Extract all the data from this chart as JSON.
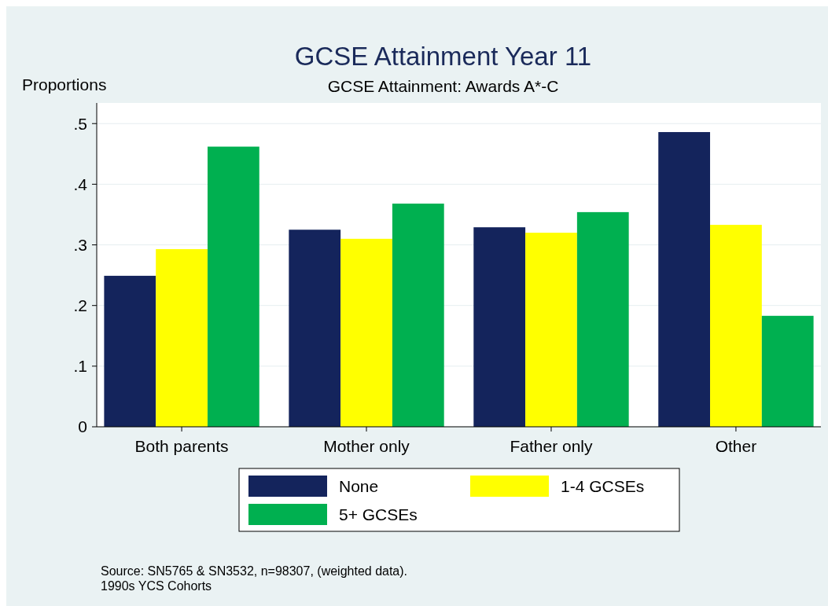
{
  "chart_data": {
    "type": "bar",
    "title": "GCSE Attainment Year 11",
    "subtitle": "GCSE Attainment: Awards A*-C",
    "ylabel": "Proportions",
    "categories": [
      "Both parents",
      "Mother only",
      "Father only",
      "Other"
    ],
    "series": [
      {
        "name": "None",
        "color": "#14245c",
        "values": [
          0.249,
          0.325,
          0.329,
          0.486
        ]
      },
      {
        "name": "1-4 GCSEs",
        "color": "#ffff00",
        "values": [
          0.293,
          0.31,
          0.32,
          0.333
        ]
      },
      {
        "name": "5+ GCSEs",
        "color": "#00b050",
        "values": [
          0.462,
          0.368,
          0.354,
          0.183
        ]
      }
    ],
    "ylim": [
      0,
      0.534
    ],
    "yticks": [
      {
        "value": 0,
        "label": "0"
      },
      {
        "value": 0.1,
        "label": ".1"
      },
      {
        "value": 0.2,
        "label": ".2"
      },
      {
        "value": 0.3,
        "label": ".3"
      },
      {
        "value": 0.4,
        "label": ".4"
      },
      {
        "value": 0.5,
        "label": ".5"
      }
    ],
    "grid": "y",
    "legend": "bottom",
    "annotations": [
      "Source: SN5765 & SN3532, n=98307, (weighted data).",
      "1990s YCS Cohorts"
    ]
  }
}
